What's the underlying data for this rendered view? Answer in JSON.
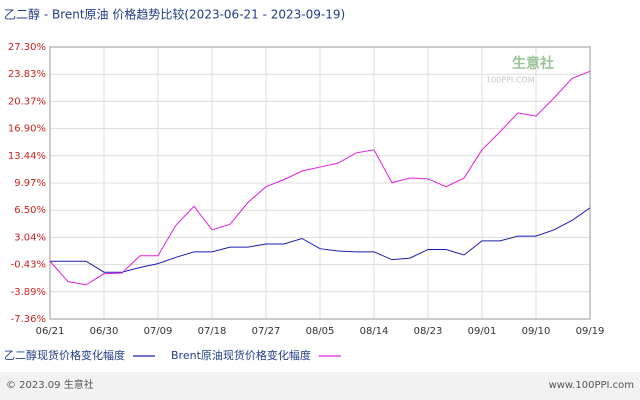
{
  "chart_data": {
    "type": "line",
    "title": "乙二醇 - Brent原油 价格趋势比较(2023-06-21 - 2023-09-19)",
    "categories": [
      "06/21",
      null,
      null,
      "06/30",
      null,
      null,
      "07/09",
      null,
      null,
      "07/18",
      null,
      null,
      "07/27",
      null,
      null,
      "08/05",
      null,
      null,
      "08/14",
      null,
      null,
      "08/23",
      null,
      null,
      "09/01",
      null,
      null,
      "09/10",
      null,
      null,
      "09/19"
    ],
    "series": [
      {
        "name": "乙二醇现货价格变化幅度",
        "color": "#1c1cb0",
        "values": [
          0,
          0,
          0,
          -1.4,
          -1.4,
          -0.8,
          -0.3,
          0.5,
          1.2,
          1.2,
          1.8,
          1.8,
          2.2,
          2.2,
          2.9,
          1.6,
          1.3,
          1.2,
          1.2,
          0.2,
          0.4,
          1.5,
          1.5,
          0.8,
          2.6,
          2.6,
          3.2,
          3.2,
          4.0,
          5.2,
          6.8
        ]
      },
      {
        "name": "Brent原油现货价格变化幅度",
        "color": "#e020e0",
        "values": [
          0,
          -2.6,
          -3.0,
          -1.6,
          -1.5,
          0.7,
          0.7,
          4.6,
          7.0,
          4.0,
          4.7,
          7.5,
          9.5,
          10.4,
          11.5,
          12.0,
          12.5,
          13.8,
          14.2,
          10.0,
          10.6,
          10.5,
          9.5,
          10.6,
          14.2,
          16.5,
          18.9,
          18.5,
          20.8,
          23.3,
          24.2
        ]
      }
    ],
    "ylim": [
      -7.36,
      27.3
    ],
    "yticks": [
      {
        "value": -7.36,
        "label": "-7.36%"
      },
      {
        "value": -3.89,
        "label": "-3.89%"
      },
      {
        "value": -0.43,
        "label": "-0.43%"
      },
      {
        "value": 3.04,
        "label": "3.04%"
      },
      {
        "value": 6.5,
        "label": "6.50%"
      },
      {
        "value": 9.97,
        "label": "9.97%"
      },
      {
        "value": 13.44,
        "label": "13.44%"
      },
      {
        "value": 16.9,
        "label": "16.90%"
      },
      {
        "value": 20.37,
        "label": "20.37%"
      },
      {
        "value": 23.83,
        "label": "23.83%"
      },
      {
        "value": 27.3,
        "label": "27.30%"
      }
    ],
    "grid": true,
    "watermark": "生意社",
    "watermark_sub": "100PPI.COM",
    "footer_left": "© 2023.09 生意社",
    "footer_right": "www.100PPI.com"
  }
}
